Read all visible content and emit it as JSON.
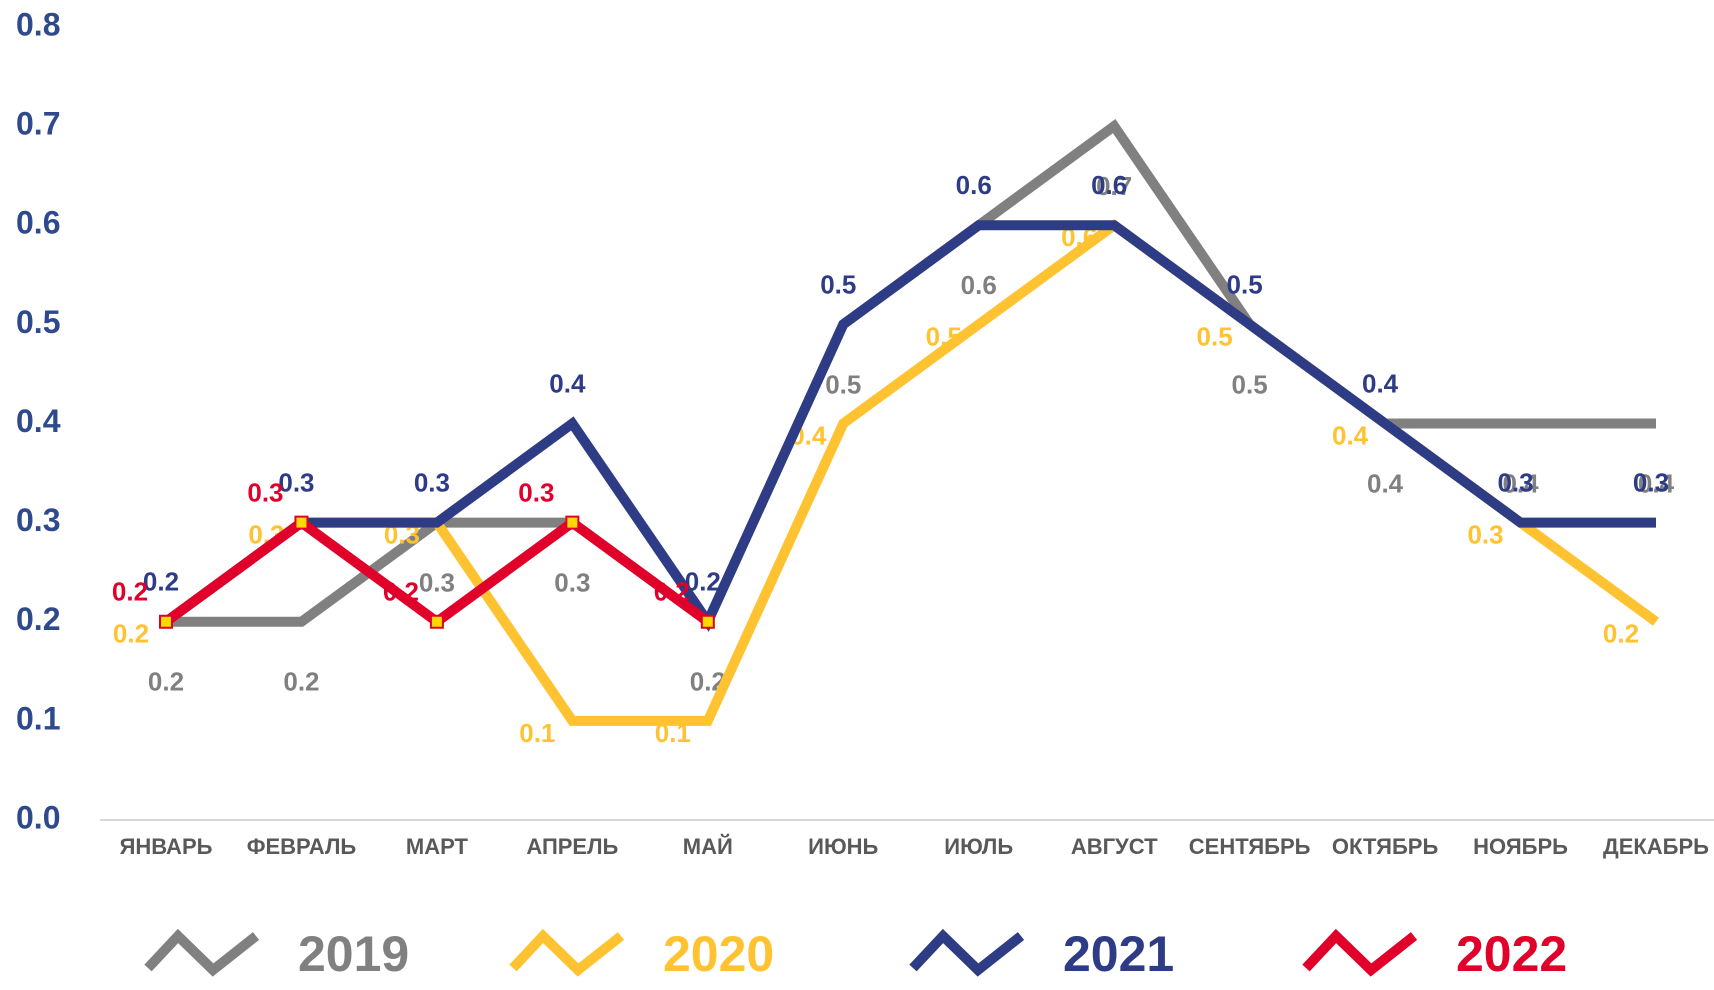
{
  "chart_data": {
    "type": "line",
    "categories": [
      "ЯНВАРЬ",
      "ФЕВРАЛЬ",
      "МАРТ",
      "АПРЕЛЬ",
      "МАЙ",
      "ИЮНЬ",
      "ИЮЛЬ",
      "АВГУСТ",
      "СЕНТЯБРЬ",
      "ОКТЯБРЬ",
      "НОЯБРЬ",
      "ДЕКАБРЬ"
    ],
    "series": [
      {
        "name": "2019",
        "color": "#808080",
        "values": [
          0.2,
          0.2,
          0.3,
          0.3,
          0.2,
          0.5,
          0.6,
          0.7,
          0.5,
          0.4,
          0.4,
          0.4
        ]
      },
      {
        "name": "2020",
        "color": "#ffc332",
        "values": [
          0.2,
          0.3,
          0.3,
          0.1,
          0.1,
          0.4,
          0.5,
          0.6,
          0.5,
          0.4,
          0.3,
          0.2
        ]
      },
      {
        "name": "2021",
        "color": "#2e3c86",
        "values": [
          0.2,
          0.3,
          0.3,
          0.4,
          0.2,
          0.5,
          0.6,
          0.6,
          0.5,
          0.4,
          0.3,
          0.3
        ]
      },
      {
        "name": "2022",
        "color": "#e0002a",
        "values": [
          0.2,
          0.3,
          0.2,
          0.3,
          0.2,
          null,
          null,
          null,
          null,
          null,
          null,
          null
        ]
      }
    ],
    "ylim": [
      0,
      0.8
    ],
    "yticks": [
      {
        "value": 0,
        "label": "0.0"
      },
      0.1,
      0.2,
      0.3,
      0.4,
      0.5,
      0.6,
      0.7,
      0.8
    ],
    "grid": false,
    "legend": "bottom"
  }
}
